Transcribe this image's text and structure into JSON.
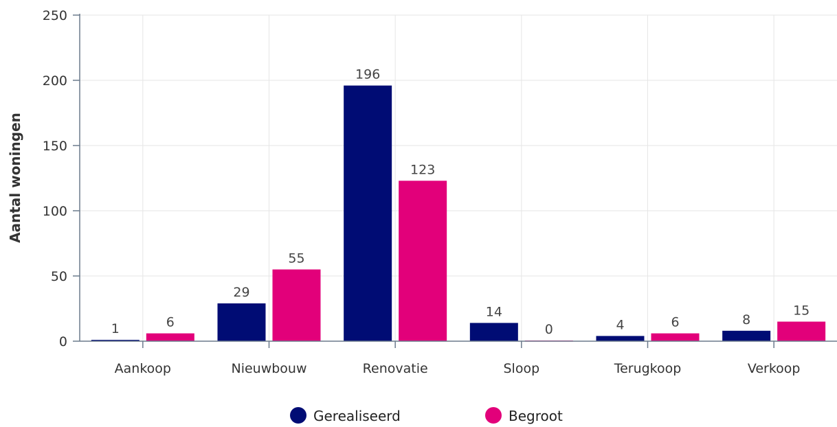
{
  "chart_data": {
    "type": "bar",
    "categories": [
      "Aankoop",
      "Nieuwbouw",
      "Renovatie",
      "Sloop",
      "Terugkoop",
      "Verkoop"
    ],
    "series": [
      {
        "name": "Gerealiseerd",
        "color": "#000C74",
        "values": [
          1,
          29,
          196,
          14,
          4,
          8
        ]
      },
      {
        "name": "Begroot",
        "color": "#E2007A",
        "values": [
          6,
          55,
          123,
          0,
          6,
          15
        ]
      }
    ],
    "xlabel": "",
    "ylabel": "Aantal woningen",
    "ylim": [
      0,
      250
    ],
    "yticks": [
      0,
      50,
      100,
      150,
      200,
      250
    ],
    "grid": true,
    "legend_position": "bottom-center"
  }
}
